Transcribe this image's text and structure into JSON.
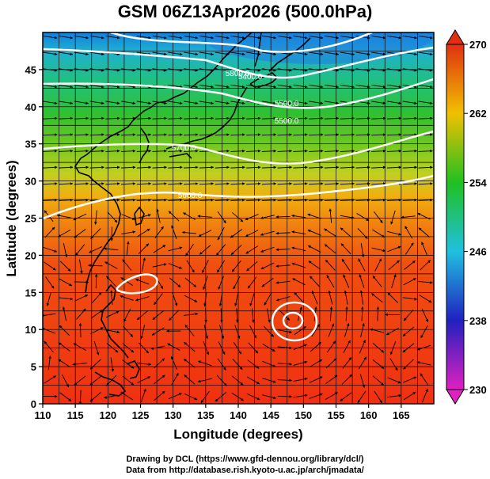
{
  "title": "GSM 06Z13Apr2026 (500.0hPa)",
  "credits": {
    "line1": "Drawing by DCL (https://www.gfd-dennou.org/library/dcl/)",
    "line2": "Data from http://database.rish.kyoto-u.ac.jp/arch/jmadata/"
  },
  "map": {
    "xlabel": "Longitude (degrees)",
    "ylabel": "Latitude  (degrees)",
    "xlim": [
      110,
      170
    ],
    "ylim": [
      0,
      50
    ],
    "xticks": [
      110,
      115,
      120,
      125,
      130,
      135,
      140,
      145,
      150,
      155,
      160,
      165
    ],
    "yticks": [
      0,
      5,
      10,
      15,
      20,
      25,
      30,
      35,
      40,
      45
    ],
    "contour_labels": [
      "5400.0",
      "5500.0",
      "5600.0",
      "5700.0",
      "5800.0"
    ]
  },
  "colorbar": {
    "ticks": [
      230,
      238,
      246,
      254,
      262,
      270
    ],
    "colors": {
      "c230": "#e020c0",
      "c238": "#2020c0",
      "c246": "#20c0e0",
      "c254": "#20c020",
      "c262": "#f0c000",
      "c270": "#e03010"
    }
  }
}
